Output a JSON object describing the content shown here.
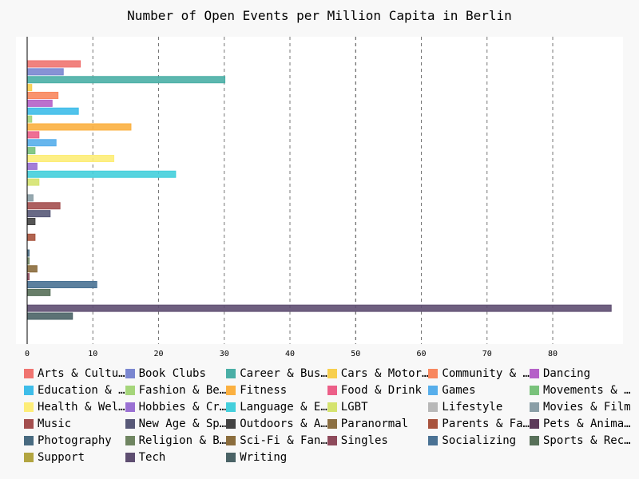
{
  "chart_data": {
    "type": "bar",
    "orientation": "horizontal",
    "title": "Number of Open Events per Million Capita in Berlin",
    "xlabel": "",
    "ylabel": "",
    "xlim": [
      0,
      89
    ],
    "x_ticks": [
      0,
      10,
      20,
      30,
      40,
      50,
      60,
      70,
      80
    ],
    "grid": "vertical dashed",
    "legend_position": "bottom",
    "series": [
      {
        "name": "Arts & Culture",
        "legend_label": "Arts & Cultu…",
        "value": 8.1,
        "color": "#f07470"
      },
      {
        "name": "Book Clubs",
        "legend_label": "Book Clubs",
        "value": 5.5,
        "color": "#7a86d0"
      },
      {
        "name": "Career & Business",
        "legend_label": "Career & Bus…",
        "value": 30.1,
        "color": "#4aafa6"
      },
      {
        "name": "Cars & Motorcycles",
        "legend_label": "Cars & Motor…",
        "value": 0.7,
        "color": "#f7cf4d"
      },
      {
        "name": "Community & Environment",
        "legend_label": "Community & …",
        "value": 4.7,
        "color": "#f8875e"
      },
      {
        "name": "Dancing",
        "legend_label": "Dancing",
        "value": 3.8,
        "color": "#b561c8"
      },
      {
        "name": "Education & Learning",
        "legend_label": "Education & …",
        "value": 7.8,
        "color": "#3ebde9"
      },
      {
        "name": "Fashion & Beauty",
        "legend_label": "Fashion & Be…",
        "value": 0.7,
        "color": "#a5d57a"
      },
      {
        "name": "Fitness",
        "legend_label": "Fitness",
        "value": 15.8,
        "color": "#fbb040"
      },
      {
        "name": "Food & Drink",
        "legend_label": "Food & Drink",
        "value": 1.8,
        "color": "#ec5f88"
      },
      {
        "name": "Games",
        "legend_label": "Games",
        "value": 4.4,
        "color": "#57aeeb"
      },
      {
        "name": "Movements & Politics",
        "legend_label": "Movements & …",
        "value": 1.2,
        "color": "#79c27b"
      },
      {
        "name": "Health & Wellbeing",
        "legend_label": "Health & Wel…",
        "value": 13.2,
        "color": "#fded78"
      },
      {
        "name": "Hobbies & Crafts",
        "legend_label": "Hobbies & Cr…",
        "value": 1.5,
        "color": "#9a70d3"
      },
      {
        "name": "Language & Ethnic Identity",
        "legend_label": "Language & E…",
        "value": 22.6,
        "color": "#44cfdc"
      },
      {
        "name": "LGBT",
        "legend_label": "LGBT",
        "value": 1.8,
        "color": "#d5e36f"
      },
      {
        "name": "Lifestyle",
        "legend_label": "Lifestyle",
        "value": 0.0,
        "color": "#b8b8b8"
      },
      {
        "name": "Movies & Film",
        "legend_label": "Movies & Film",
        "value": 0.9,
        "color": "#8a9ea6"
      },
      {
        "name": "Music",
        "legend_label": "Music",
        "value": 5.0,
        "color": "#a44f4f"
      },
      {
        "name": "New Age & Spirituality",
        "legend_label": "New Age & Sp…",
        "value": 3.5,
        "color": "#585978"
      },
      {
        "name": "Outdoors & Adventure",
        "legend_label": "Outdoors & A…",
        "value": 1.2,
        "color": "#434343"
      },
      {
        "name": "Paranormal",
        "legend_label": "Paranormal",
        "value": 0.0,
        "color": "#8c7043"
      },
      {
        "name": "Parents & Family",
        "legend_label": "Parents & Fa…",
        "value": 1.2,
        "color": "#a8533d"
      },
      {
        "name": "Pets & Animals",
        "legend_label": "Pets & Anima…",
        "value": 0.0,
        "color": "#5d3a5a"
      },
      {
        "name": "Photography",
        "legend_label": "Photography",
        "value": 0.3,
        "color": "#486a80"
      },
      {
        "name": "Religion & Beliefs",
        "legend_label": "Religion & B…",
        "value": 0.3,
        "color": "#6f8561"
      },
      {
        "name": "Sci-Fi & Fantasy",
        "legend_label": "Sci-Fi & Fan…",
        "value": 1.5,
        "color": "#8b6d3d"
      },
      {
        "name": "Singles",
        "legend_label": "Singles",
        "value": 0.3,
        "color": "#8e4a5b"
      },
      {
        "name": "Socializing",
        "legend_label": "Socializing",
        "value": 10.6,
        "color": "#4a7294"
      },
      {
        "name": "Sports & Recreation",
        "legend_label": "Sports & Rec…",
        "value": 3.5,
        "color": "#587059"
      },
      {
        "name": "Support",
        "legend_label": "Support",
        "value": 0.0,
        "color": "#b2a541"
      },
      {
        "name": "Tech",
        "legend_label": "Tech",
        "value": 88.9,
        "color": "#5e4e71"
      },
      {
        "name": "Writing",
        "legend_label": "Writing",
        "value": 6.9,
        "color": "#4a6366"
      }
    ]
  }
}
